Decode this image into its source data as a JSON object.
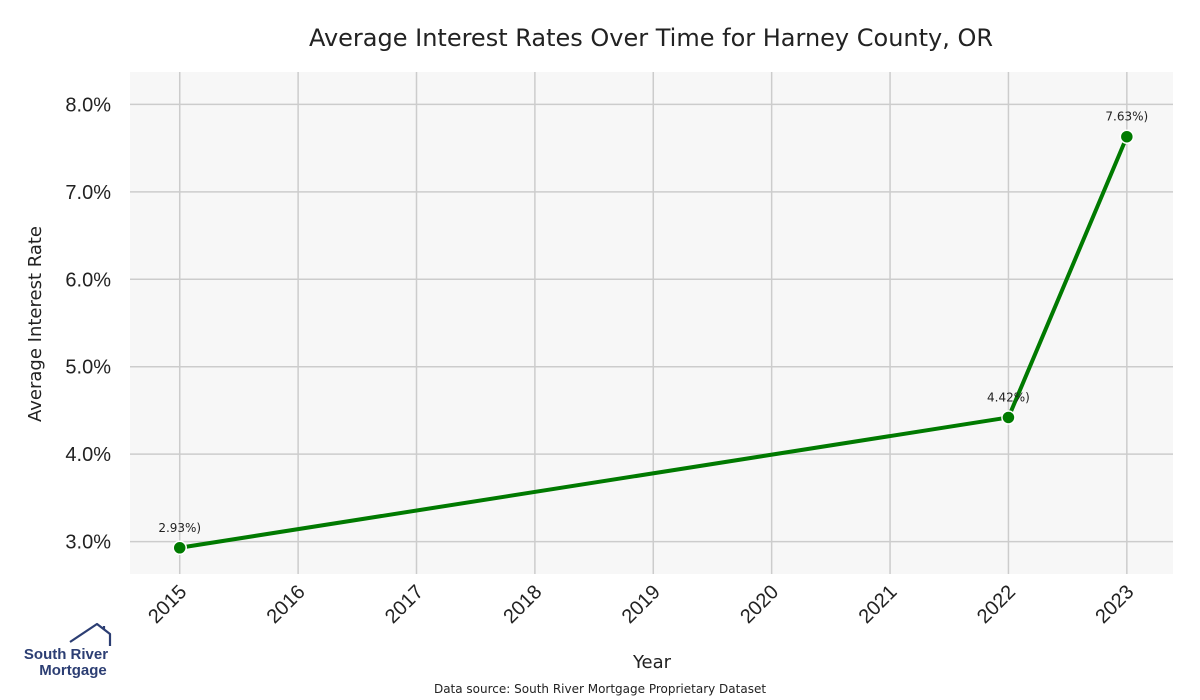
{
  "chart_data": {
    "type": "line",
    "title": "Average Interest Rates Over Time for Harney County, OR",
    "xlabel": "Year",
    "ylabel": "Average Interest Rate",
    "x_ticks": [
      "2015",
      "2016",
      "2017",
      "2018",
      "2019",
      "2020",
      "2021",
      "2022",
      "2023"
    ],
    "y_ticks": [
      "3.0%",
      "4.0%",
      "5.0%",
      "6.0%",
      "7.0%",
      "8.0%"
    ],
    "xlim": [
      2014.58,
      2023.39
    ],
    "ylim": [
      2.63,
      8.37
    ],
    "series": [
      {
        "x": [
          2015,
          2022,
          2023
        ],
        "y": [
          2.93,
          4.42,
          7.63
        ],
        "labels": [
          "2.93%)",
          "4.42%)",
          "7.63%)"
        ],
        "color": "#007a00"
      }
    ],
    "grid": true,
    "background": "#f7f7f7",
    "grid_color": "#cccccc"
  },
  "footer": {
    "source": "Data source: South River Mortgage Proprietary Dataset"
  },
  "logo": {
    "line1": "South River",
    "line2": "Mortgage",
    "icon": "house-roof-icon",
    "color": "#2c3e73"
  }
}
